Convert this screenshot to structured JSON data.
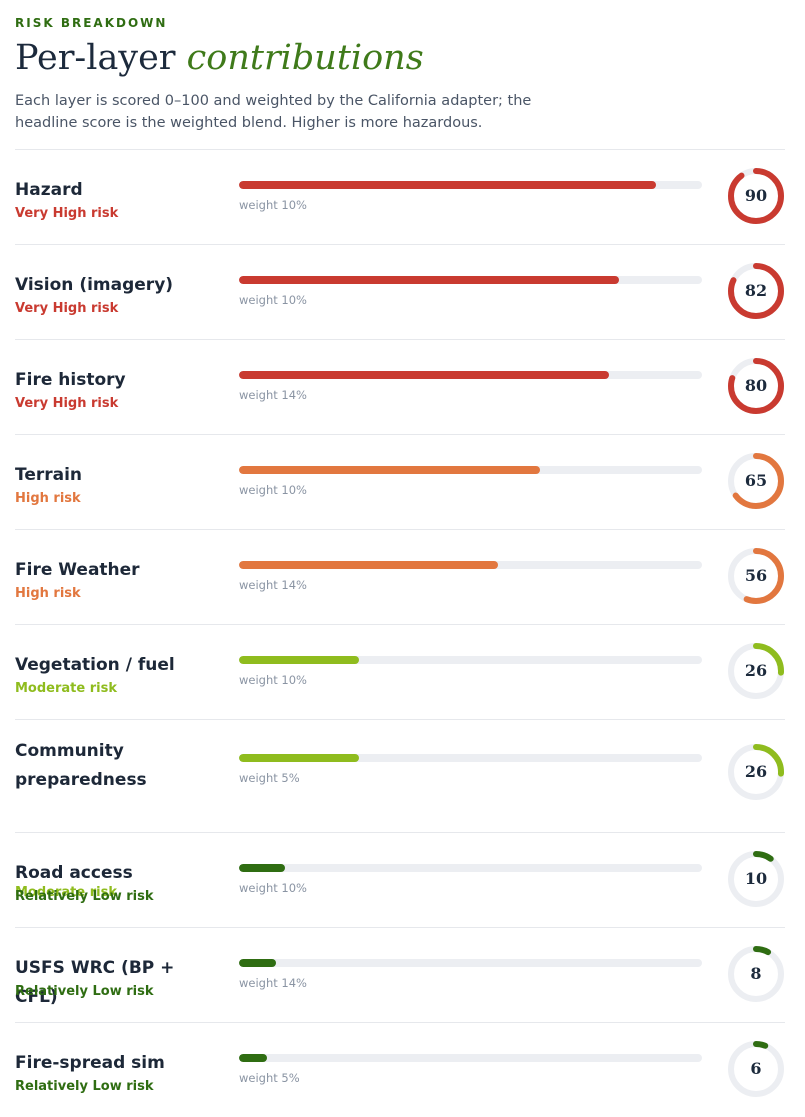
{
  "header": {
    "eyebrow": "RISK BREAKDOWN",
    "title_plain": "Per-layer",
    "title_accent": "contributions",
    "description": "Each layer is scored 0–100 and weighted by the California adapter; the headline score is the weighted blend. Higher is more hazardous."
  },
  "colors": {
    "very_high": "#c93a30",
    "high": "#e2773f",
    "moderate": "#8fbc1e",
    "low": "#2f6d12",
    "track": "#eceef2"
  },
  "layers": [
    {
      "name": "Hazard",
      "risk": "Very High risk",
      "level": "very_high",
      "weight": "weight 10%",
      "score": 90
    },
    {
      "name": "Vision (imagery)",
      "risk": "Very High risk",
      "level": "very_high",
      "weight": "weight 10%",
      "score": 82
    },
    {
      "name": "Fire history",
      "risk": "Very High risk",
      "level": "very_high",
      "weight": "weight 14%",
      "score": 80
    },
    {
      "name": "Terrain",
      "risk": "High risk",
      "level": "high",
      "weight": "weight 10%",
      "score": 65
    },
    {
      "name": "Fire Weather",
      "risk": "High risk",
      "level": "high",
      "weight": "weight 14%",
      "score": 56
    },
    {
      "name": "Vegetation / fuel",
      "risk": "Moderate risk",
      "level": "moderate",
      "weight": "weight 10%",
      "score": 26
    },
    {
      "name": "Community preparedness",
      "risk": "Moderate risk",
      "level": "moderate",
      "weight": "weight 5%",
      "score": 26
    },
    {
      "name": "Road access",
      "risk": "Relatively Low risk",
      "level": "low",
      "weight": "weight 10%",
      "score": 10
    },
    {
      "name": "USFS WRC (BP + CFL)",
      "risk": "Relatively Low risk",
      "level": "low",
      "weight": "weight 14%",
      "score": 8
    },
    {
      "name": "Fire-spread sim",
      "risk": "Relatively Low risk",
      "level": "low",
      "weight": "weight 5%",
      "score": 6
    }
  ]
}
